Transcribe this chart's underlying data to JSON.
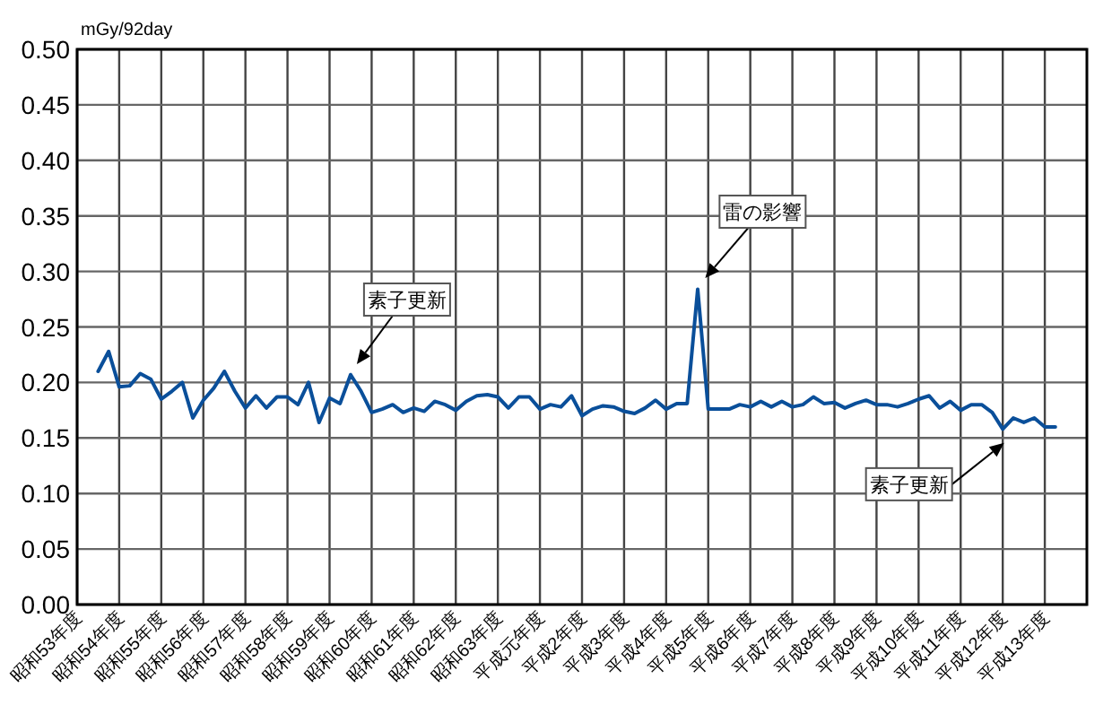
{
  "chart_data": {
    "type": "line",
    "ylabel": "mGy/92day",
    "categories": [
      "昭和53年度",
      null,
      null,
      null,
      "昭和54年度",
      null,
      null,
      null,
      "昭和55年度",
      null,
      null,
      null,
      "昭和56年度",
      null,
      null,
      null,
      "昭和57年度",
      null,
      null,
      null,
      "昭和58年度",
      null,
      null,
      null,
      "昭和59年度",
      null,
      null,
      null,
      "昭和60年度",
      null,
      null,
      null,
      "昭和61年度",
      null,
      null,
      null,
      "昭和62年度",
      null,
      null,
      null,
      "昭和63年度",
      null,
      null,
      null,
      "平成元年度",
      null,
      null,
      null,
      "平成2年度",
      null,
      null,
      null,
      "平成3年度",
      null,
      null,
      null,
      "平成4年度",
      null,
      null,
      null,
      "平成5年度",
      null,
      null,
      null,
      "平成6年度",
      null,
      null,
      null,
      "平成7年度",
      null,
      null,
      null,
      "平成8年度",
      null,
      null,
      null,
      "平成9年度",
      null,
      null,
      null,
      "平成10年度",
      null,
      null,
      null,
      "平成11年度",
      null,
      null,
      null,
      "平成12年度",
      null,
      null,
      null,
      "平成13年度",
      null,
      null,
      null,
      null
    ],
    "series": [
      {
        "color": "#0a4f9a",
        "values": [
          null,
          null,
          0.21,
          0.228,
          0.196,
          0.197,
          0.208,
          0.203,
          0.185,
          0.192,
          0.2,
          0.168,
          0.184,
          0.195,
          0.21,
          0.192,
          0.177,
          0.188,
          0.177,
          0.187,
          0.187,
          0.18,
          0.2,
          0.164,
          0.186,
          0.181,
          0.207,
          0.192,
          0.173,
          0.176,
          0.18,
          0.173,
          0.177,
          0.174,
          0.183,
          0.18,
          0.175,
          0.183,
          0.188,
          0.189,
          0.187,
          0.177,
          0.187,
          0.187,
          0.176,
          0.18,
          0.178,
          0.188,
          0.17,
          0.176,
          0.179,
          0.178,
          0.174,
          0.172,
          0.177,
          0.184,
          0.176,
          0.181,
          0.181,
          0.284,
          0.176,
          0.176,
          0.176,
          0.18,
          0.178,
          0.183,
          0.178,
          0.183,
          0.178,
          0.18,
          0.187,
          0.181,
          0.182,
          0.177,
          0.181,
          0.184,
          0.18,
          0.18,
          0.178,
          0.181,
          0.185,
          0.188,
          0.177,
          0.183,
          0.175,
          0.18,
          0.18,
          0.173,
          0.158,
          0.168,
          0.164,
          0.168,
          0.16,
          0.16,
          null,
          null,
          null
        ]
      }
    ],
    "ylim": [
      0,
      0.5
    ],
    "yticks": [
      {
        "value": 0,
        "label": "0.00"
      },
      {
        "value": 0.05,
        "label": "0.05"
      },
      {
        "value": 0.1,
        "label": "0.10"
      },
      {
        "value": 0.15,
        "label": "0.15"
      },
      {
        "value": 0.2,
        "label": "0.20"
      },
      {
        "value": 0.25,
        "label": "0.25"
      },
      {
        "value": 0.3,
        "label": "0.30"
      },
      {
        "value": 0.35,
        "label": "0.35"
      },
      {
        "value": 0.4,
        "label": "0.40"
      },
      {
        "value": 0.45,
        "label": "0.45"
      },
      {
        "value": 0.5,
        "label": "0.50"
      }
    ],
    "grid": true,
    "marker": "none",
    "line_style": "solid",
    "annotations": [
      "素子更新",
      "雷の影響",
      "素子更新"
    ]
  }
}
